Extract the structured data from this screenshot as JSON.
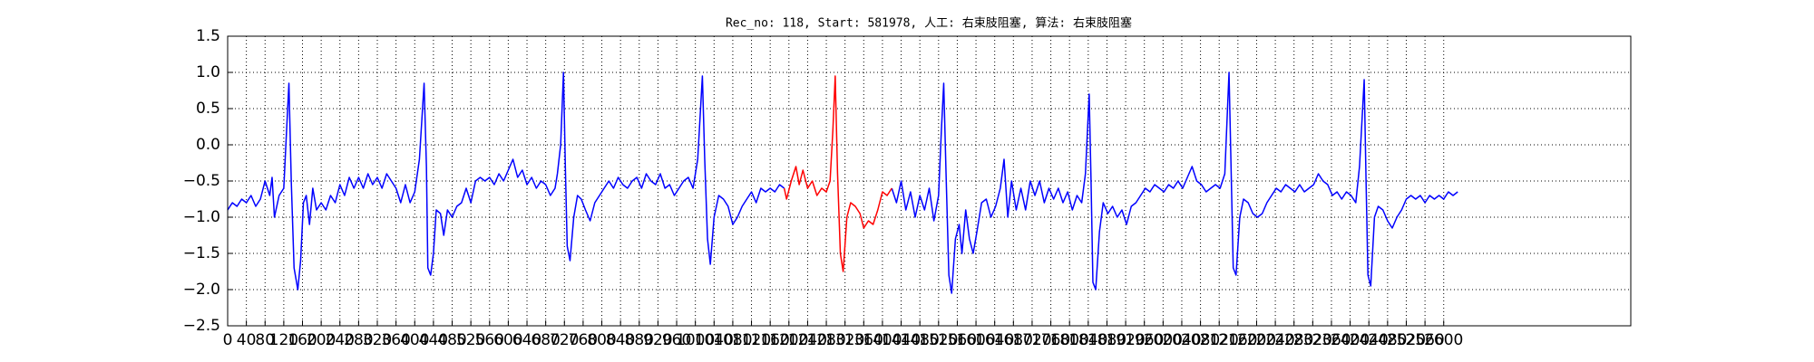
{
  "chart_data": {
    "type": "line",
    "title": "Rec_no: 118, Start: 581978, 人工: 右束肢阻塞, 算法: 右束肢阻塞",
    "xlim": [
      0,
      3000
    ],
    "xticks": [
      0,
      40,
      80,
      120,
      160,
      200,
      240,
      280,
      320,
      360,
      400,
      440,
      480,
      520,
      560,
      600,
      640,
      680,
      720,
      760,
      800,
      840,
      880,
      920,
      960,
      1000,
      1040,
      1080,
      1120,
      1160,
      1200,
      1240,
      1280,
      1320,
      1360,
      1400,
      1440,
      1480,
      1520,
      1560,
      1600,
      1640,
      1680,
      1720,
      1760,
      1800,
      1840,
      1880,
      1920,
      1960,
      2000,
      2040,
      2080,
      2120,
      2160,
      2200,
      2240,
      2280,
      2320,
      2360,
      2400,
      2440,
      2480,
      2520,
      2560,
      2600
    ],
    "ylim": [
      -2.5,
      1.5
    ],
    "yticks": [
      {
        "value": -2.5,
        "label": "−2.5"
      },
      {
        "value": -2.0,
        "label": "−2.0"
      },
      {
        "value": -1.5,
        "label": "−1.5"
      },
      {
        "value": -1.0,
        "label": "−1.0"
      },
      {
        "value": -0.5,
        "label": "−0.5"
      },
      {
        "value": 0.0,
        "label": "0.0"
      },
      0.5,
      {
        "value": 1.0,
        "label": "1.0"
      },
      1.5
    ],
    "grid": true,
    "series": [
      {
        "color": "#0000ff",
        "x": [
          0,
          10,
          20,
          30,
          40,
          50,
          60,
          70,
          80,
          90,
          95,
          100,
          110,
          120,
          126,
          131,
          136,
          142,
          150,
          156,
          162,
          168,
          175,
          182,
          190,
          200,
          210,
          220,
          230,
          240,
          250,
          260,
          270,
          280,
          290,
          300,
          310,
          320,
          330,
          340,
          350,
          360,
          370,
          380,
          390,
          400,
          410,
          420,
          425,
          428,
          434,
          440,
          446,
          455,
          462,
          470,
          480,
          490,
          500,
          510,
          520,
          530,
          540,
          550,
          560,
          570,
          580,
          590,
          600,
          610,
          620,
          630,
          640,
          650,
          660,
          670,
          680,
          690,
          700,
          705,
          712,
          718,
          722,
          726,
          732,
          740,
          748,
          756,
          765,
          775,
          785,
          795,
          805,
          815,
          825,
          835,
          845,
          855,
          865,
          875,
          885,
          895,
          905,
          915,
          925,
          935,
          945,
          955,
          965,
          975,
          985,
          995,
          1005,
          1015,
          1020,
          1026,
          1032,
          1040,
          1050,
          1060,
          1070,
          1080,
          1090,
          1100,
          1110,
          1120,
          1130,
          1140,
          1150,
          1160,
          1170,
          1180,
          1190,
          1299,
          1420,
          1430,
          1440,
          1450,
          1460,
          1470,
          1480,
          1490,
          1500,
          1510,
          1520,
          1526,
          1531,
          1536,
          1542,
          1548,
          1556,
          1564,
          1570,
          1578,
          1586,
          1594,
          1602,
          1612,
          1622,
          1632,
          1642,
          1652,
          1660,
          1668,
          1676,
          1686,
          1696,
          1706,
          1716,
          1726,
          1736,
          1746,
          1756,
          1766,
          1776,
          1786,
          1796,
          1806,
          1816,
          1826,
          1834,
          1842,
          1846,
          1850,
          1856,
          1864,
          1872,
          1882,
          1892,
          1902,
          1912,
          1922,
          1932,
          1942,
          1952,
          1962,
          1972,
          1982,
          1992,
          2002,
          2012,
          2022,
          2032,
          2042,
          2052,
          2062,
          2072,
          2082,
          2092,
          2102,
          2112,
          2122,
          2132,
          2141,
          2146,
          2150,
          2156,
          2164,
          2172,
          2182,
          2192,
          2202,
          2212,
          2222,
          2232,
          2242,
          2252,
          2262,
          2272,
          2282,
          2292,
          2302,
          2312,
          2322,
          2332,
          2342,
          2352,
          2362,
          2372,
          2382,
          2392,
          2402,
          2412,
          2420,
          2430,
          2434,
          2438,
          2444,
          2452,
          2460,
          2470,
          2480,
          2490,
          2500,
          2510,
          2520,
          2530,
          2540,
          2550,
          2560,
          2570,
          2580,
          2590,
          2600,
          2610,
          2620,
          2630
        ],
        "values": [
          -0.9,
          -0.8,
          -0.85,
          -0.75,
          -0.8,
          -0.7,
          -0.85,
          -0.75,
          -0.5,
          -0.7,
          -0.45,
          -1.0,
          -0.7,
          -0.6,
          0.2,
          0.85,
          -0.5,
          -1.7,
          -2.0,
          -1.6,
          -0.8,
          -0.7,
          -1.1,
          -0.6,
          -0.9,
          -0.8,
          -0.9,
          -0.7,
          -0.8,
          -0.55,
          -0.7,
          -0.45,
          -0.6,
          -0.45,
          -0.6,
          -0.4,
          -0.55,
          -0.45,
          -0.6,
          -0.4,
          -0.5,
          -0.6,
          -0.8,
          -0.55,
          -0.8,
          -0.65,
          -0.2,
          0.85,
          -0.3,
          -1.7,
          -1.8,
          -1.5,
          -0.9,
          -0.95,
          -1.25,
          -0.9,
          -1.0,
          -0.85,
          -0.8,
          -0.6,
          -0.8,
          -0.5,
          -0.45,
          -0.5,
          -0.45,
          -0.55,
          -0.4,
          -0.5,
          -0.35,
          -0.2,
          -0.45,
          -0.35,
          -0.55,
          -0.45,
          -0.6,
          -0.5,
          -0.55,
          -0.7,
          -0.6,
          -0.4,
          0.0,
          1.0,
          -0.3,
          -1.4,
          -1.6,
          -1.0,
          -0.7,
          -0.75,
          -0.9,
          -1.05,
          -0.8,
          -0.7,
          -0.6,
          -0.5,
          -0.6,
          -0.45,
          -0.55,
          -0.6,
          -0.5,
          -0.45,
          -0.6,
          -0.4,
          -0.5,
          -0.55,
          -0.4,
          -0.6,
          -0.55,
          -0.7,
          -0.6,
          -0.5,
          -0.45,
          -0.6,
          -0.2,
          0.95,
          -0.2,
          -1.3,
          -1.65,
          -1.0,
          -0.7,
          -0.75,
          -0.85,
          -1.1,
          -1.0,
          -0.85,
          -0.75,
          -0.65,
          -0.8,
          -0.6,
          -0.65,
          -0.6,
          -0.65,
          -0.55,
          -0.6,
          null,
          -0.6,
          -0.8,
          -0.5,
          -0.9,
          -0.65,
          -1.0,
          -0.7,
          -0.9,
          -0.6,
          -1.05,
          -0.7,
          0.2,
          0.85,
          -0.4,
          -1.8,
          -2.05,
          -1.3,
          -1.1,
          -1.5,
          -0.9,
          -1.3,
          -1.5,
          -1.2,
          -0.8,
          -0.75,
          -1.0,
          -0.85,
          -0.6,
          -0.2,
          -1.0,
          -0.5,
          -0.9,
          -0.6,
          -0.9,
          -0.5,
          -0.7,
          -0.5,
          -0.8,
          -0.6,
          -0.75,
          -0.6,
          -0.8,
          -0.65,
          -0.9,
          -0.7,
          -0.8,
          -0.4,
          0.7,
          -0.5,
          -1.9,
          -2.0,
          -1.2,
          -0.8,
          -0.95,
          -0.85,
          -1.0,
          -0.9,
          -1.1,
          -0.85,
          -0.8,
          -0.7,
          -0.6,
          -0.65,
          -0.55,
          -0.6,
          -0.65,
          -0.55,
          -0.6,
          -0.5,
          -0.6,
          -0.45,
          -0.3,
          -0.5,
          -0.55,
          -0.65,
          -0.6,
          -0.55,
          -0.6,
          -0.4,
          1.0,
          -0.5,
          -1.7,
          -1.8,
          -1.0,
          -0.75,
          -0.8,
          -0.95,
          -1.0,
          -0.95,
          -0.8,
          -0.7,
          -0.6,
          -0.65,
          -0.55,
          -0.6,
          -0.65,
          -0.55,
          -0.65,
          -0.6,
          -0.55,
          -0.4,
          -0.5,
          -0.55,
          -0.7,
          -0.65,
          -0.75,
          -0.65,
          -0.7,
          -0.8,
          -0.3,
          0.9,
          -0.5,
          -1.8,
          -1.95,
          -1.0,
          -0.85,
          -0.9,
          -1.05,
          -1.15,
          -1.0,
          -0.9,
          -0.75,
          -0.7,
          -0.75,
          -0.7,
          -0.8,
          -0.7,
          -0.75,
          -0.7,
          -0.75,
          -0.65,
          -0.7,
          -0.65
        ]
      },
      {
        "color": "#ff0000",
        "x": [
          1190,
          1195,
          1205,
          1215,
          1222,
          1230,
          1240,
          1250,
          1260,
          1270,
          1280,
          1288,
          1294,
          1299,
          1304,
          1310,
          1316,
          1324,
          1332,
          1342,
          1352,
          1360,
          1370,
          1380,
          1390,
          1400,
          1410,
          1420
        ],
        "values": [
          -0.6,
          -0.75,
          -0.5,
          -0.3,
          -0.55,
          -0.35,
          -0.6,
          -0.5,
          -0.7,
          -0.6,
          -0.65,
          -0.5,
          0.2,
          0.95,
          -0.4,
          -1.5,
          -1.75,
          -1.0,
          -0.8,
          -0.85,
          -0.95,
          -1.15,
          -1.05,
          -1.1,
          -0.9,
          -0.65,
          -0.7,
          -0.6
        ]
      }
    ]
  }
}
